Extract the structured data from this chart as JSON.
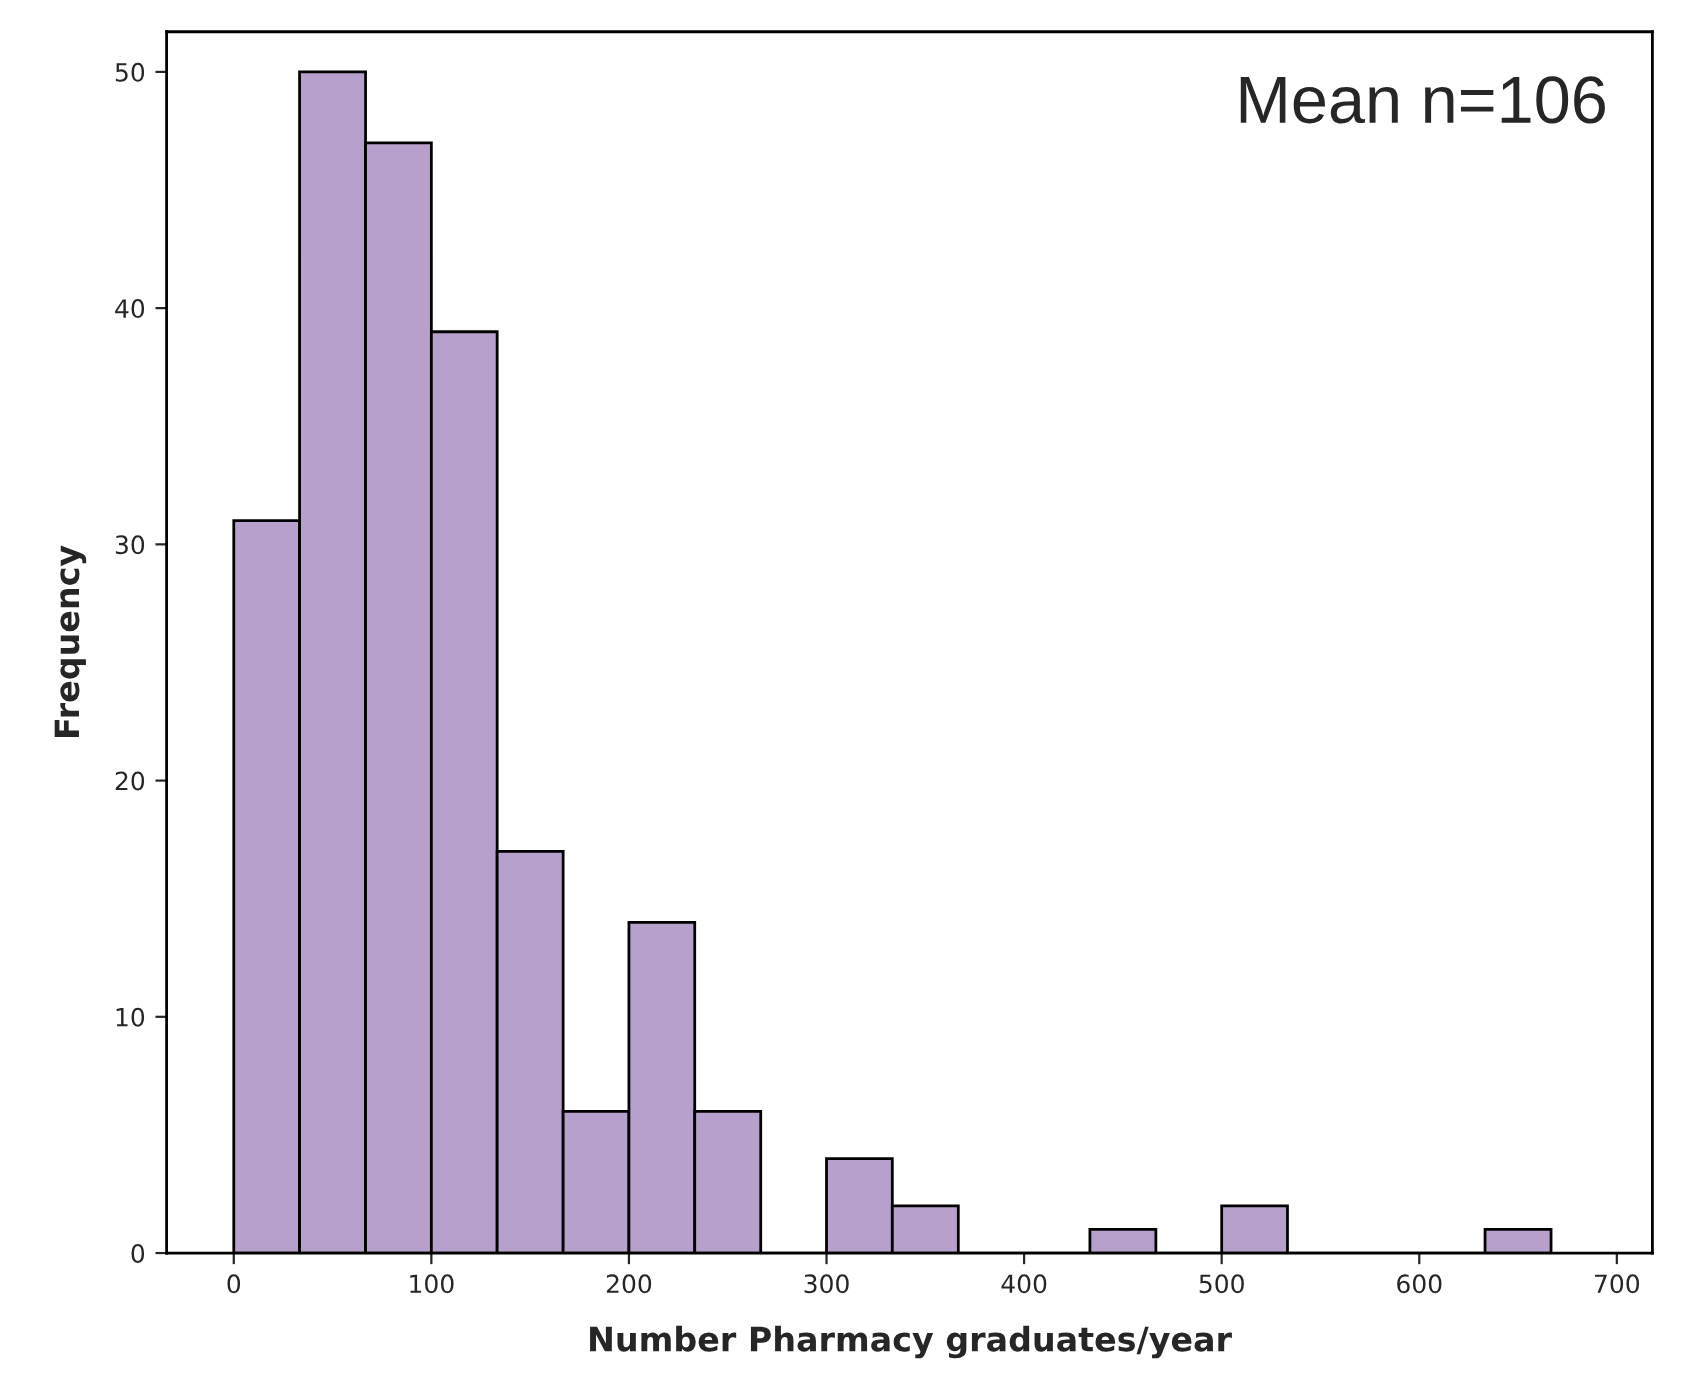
{
  "chart_data": {
    "type": "histogram",
    "xlabel": "Number Pharmacy graduates/year",
    "ylabel": "Frequency",
    "bins": [
      0,
      33.3,
      66.7,
      100,
      133.3,
      166.7,
      200,
      233.3,
      266.7,
      300,
      333.3,
      366.7,
      400,
      433.3,
      466.7,
      500,
      533.3,
      566.7,
      600,
      633.3,
      666.7
    ],
    "values": [
      31,
      50,
      47,
      39,
      17,
      6,
      14,
      6,
      0,
      4,
      2,
      0,
      0,
      1,
      0,
      2,
      0,
      0,
      0,
      1
    ],
    "color": "#b8a0cc",
    "xlim": [
      -34,
      718
    ],
    "xticks": [
      0,
      100,
      200,
      300,
      400,
      500,
      600,
      700
    ],
    "ylim": [
      0,
      51.7
    ],
    "yticks": [
      0,
      10,
      20,
      30,
      40,
      50
    ],
    "grid": false,
    "annotations": [
      "Mean n=106"
    ]
  }
}
